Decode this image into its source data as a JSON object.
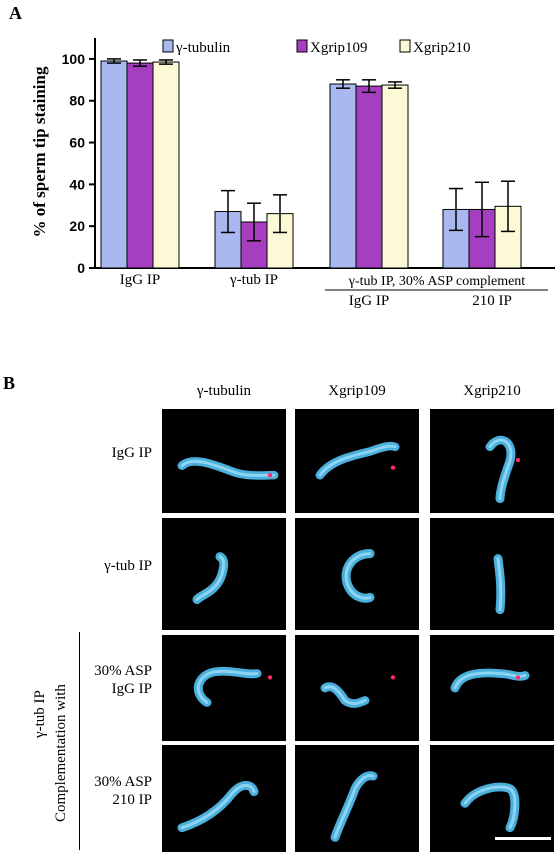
{
  "panel_a_label": "A",
  "panel_b_label": "B",
  "chart_data": {
    "type": "bar",
    "ylabel": "% of sperm tip staining",
    "ylim": [
      0,
      110
    ],
    "yticks": [
      "0",
      "20",
      "40",
      "60",
      "80",
      "100"
    ],
    "categories": [
      "IgG IP",
      "γ-tub IP",
      "γ-tub IP, 30% ASP complement IgG IP",
      "210 IP"
    ],
    "category_labels": {
      "c1": "IgG IP",
      "c2": "γ-tub IP",
      "group_header": "γ-tub IP, 30% ASP complement",
      "c3": "IgG IP",
      "c4": "210 IP"
    },
    "series": [
      {
        "name": "γ-tubulin",
        "color": "#aab8f0",
        "values": [
          99,
          27,
          88,
          28
        ],
        "errors": [
          1,
          10,
          2,
          10
        ]
      },
      {
        "name": "Xgrip109",
        "color": "#a63fbf",
        "values": [
          98,
          22,
          87,
          28
        ],
        "errors": [
          1.5,
          9,
          3,
          13
        ]
      },
      {
        "name": "Xgrip210",
        "color": "#fbf9d6",
        "values": [
          98.5,
          26,
          87.5,
          29.5
        ],
        "errors": [
          1,
          9,
          1.5,
          12
        ]
      }
    ],
    "legend_position": "top",
    "grid": false
  },
  "panel_b": {
    "columns": [
      "γ-tubulin",
      "Xgrip109",
      "Xgrip210"
    ],
    "rows": [
      "IgG IP",
      "γ-tub IP",
      "30% ASP\nIgG IP",
      "30% ASP\n210 IP"
    ],
    "side_label_1": "γ-tub IP",
    "side_label_2": "Complementation with",
    "sperm_color": "#4fb8e8",
    "tip_color": "#ff2a6a"
  }
}
